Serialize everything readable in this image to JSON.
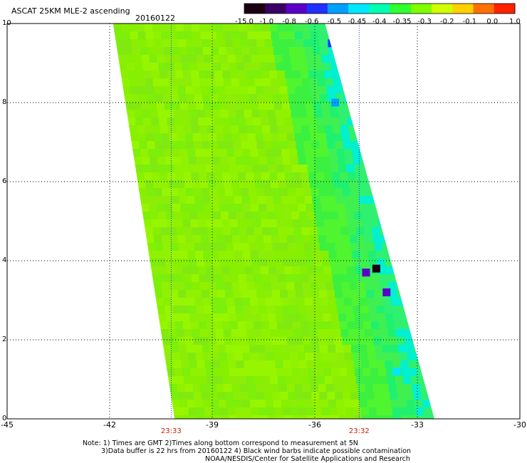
{
  "title": "ASCAT 25KM MLE-2 ascending",
  "date": "20160122",
  "colorbar": {
    "labels": [
      "-15.0",
      "-1.0",
      "-0.8",
      "-0.6",
      "-0.5",
      "-0.45",
      "-0.4",
      "-0.35",
      "-0.3",
      "-0.2",
      "-0.1",
      "0.0",
      "1.0"
    ],
    "colors": [
      "#1a0010",
      "#3a0066",
      "#5a00c8",
      "#2030ff",
      "#00a0ff",
      "#00e8ff",
      "#00ffb0",
      "#30ff30",
      "#80ff00",
      "#d0ff00",
      "#ffd000",
      "#ff7000",
      "#ff2000"
    ]
  },
  "times": [
    {
      "label": "23:33",
      "lon": -40.2
    },
    {
      "label": "23:32",
      "lon": -34.7
    }
  ],
  "time_color": "#c82000",
  "notes": [
    "Note: 1) Times are GMT 2)Times along bottom correspond to measurement at 5N",
    "3)Data buffer is 22 hrs from 20160122 4) Black wind barbs indicate possible contamination",
    "NOAA/NESDIS/Center for Satellite Applications and Research"
  ],
  "chart_data": {
    "type": "heatmap",
    "title": "ASCAT 25KM MLE-2 ascending",
    "subtitle": "20160122",
    "xlabel": "",
    "ylabel": "",
    "xlim": [
      -45,
      -30
    ],
    "ylim": [
      0,
      10
    ],
    "x_ticks": [
      -45,
      -42,
      -39,
      -36,
      -33,
      -30
    ],
    "x_tick_labels": [
      "-45",
      "-42",
      "-39",
      "-36",
      "-33",
      "-30"
    ],
    "y_ticks": [
      0,
      2,
      4,
      6,
      8,
      10
    ],
    "y_tick_labels": [
      "0",
      "2",
      "4",
      "6",
      "8",
      "10"
    ],
    "grid": true,
    "swath": {
      "left_edge": [
        [
          -40.1,
          0
        ],
        [
          -41.9,
          10
        ]
      ],
      "right_edge": [
        [
          -32.5,
          0
        ],
        [
          -35.7,
          10
        ]
      ],
      "dominant_value": "-0.3 to -0.2 (green)"
    },
    "anomalies": [
      {
        "lon": -35.5,
        "lat": 9.5,
        "value": "-0.6"
      },
      {
        "lon": -35.4,
        "lat": 8.0,
        "value": "-0.5"
      },
      {
        "lon": -34.2,
        "lat": 3.8,
        "value": "-15.0"
      },
      {
        "lon": -34.5,
        "lat": 3.7,
        "value": "-0.8"
      },
      {
        "lon": -33.9,
        "lat": 3.2,
        "value": "-0.8"
      },
      {
        "lon": -33.6,
        "lat": 1.2,
        "value": "-0.45"
      }
    ]
  }
}
